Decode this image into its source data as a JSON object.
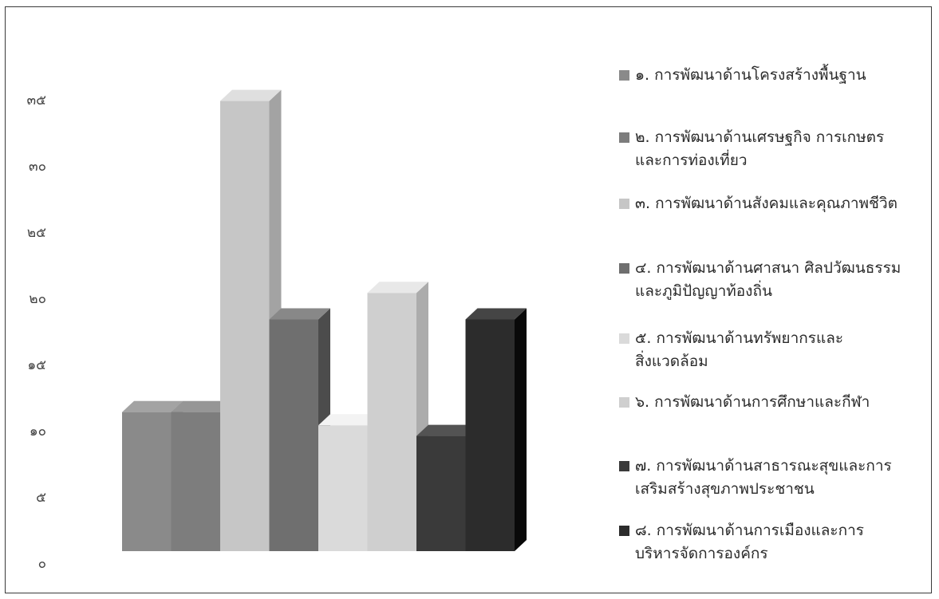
{
  "chart_data": {
    "type": "bar",
    "title": "",
    "xlabel": "",
    "ylabel": "",
    "ylim": [
      0,
      35
    ],
    "yticks": [
      "๐",
      "๕",
      "๑๐",
      "๑๕",
      "๒๐",
      "๒๕",
      "๓๐",
      "๓๕"
    ],
    "categories": [
      "๑. การพัฒนาด้านโครงสร้างพื้นฐาน",
      "๒. การพัฒนาด้านเศรษฐกิจ การเกษตร และการท่องเที่ยว",
      "๓. การพัฒนาด้านสังคมและคุณภาพชีวิต",
      "๔. การพัฒนาด้านศาสนา ศิลปวัฒนธรรม และภูมิปัญญาท้องถิ่น",
      "๕. การพัฒนาด้านทรัพยากรและ สิ่งแวดล้อม",
      "๖. การพัฒนาด้านการศึกษาและกีฬา",
      "๗. การพัฒนาด้านสาธารณะสุขและการ เสริมสร้างสุขภาพประชาชน",
      "๘. การพัฒนาด้านการเมืองและการ บริหารจัดการองค์กร"
    ],
    "values": [
      10.5,
      10.5,
      34.0,
      17.5,
      9.5,
      19.5,
      8.7,
      17.5
    ],
    "legend_position": "right",
    "grid": false,
    "colors": [
      "#8a8a8a",
      "#7d7d7d",
      "#c6c6c6",
      "#6f6f6f",
      "#dadada",
      "#cfcfcf",
      "#3a3a3a",
      "#2c2c2c"
    ]
  },
  "legend": {
    "items": [
      {
        "lines": [
          "๑. การพัฒนาด้านโครงสร้างพื้นฐาน"
        ]
      },
      {
        "lines": [
          "๒. การพัฒนาด้านเศรษฐกิจ การเกษตร",
          "และการท่องเที่ยว"
        ]
      },
      {
        "lines": [
          "๓. การพัฒนาด้านสังคมและคุณภาพชีวิต"
        ]
      },
      {
        "lines": [
          "๔. การพัฒนาด้านศาสนา ศิลปวัฒนธรรม",
          "และภูมิปัญญาท้องถิ่น"
        ]
      },
      {
        "lines": [
          "๕. การพัฒนาด้านทรัพยากรและ",
          "สิ่งแวดล้อม"
        ]
      },
      {
        "lines": [
          "๖. การพัฒนาด้านการศึกษาและกีฬา"
        ]
      },
      {
        "lines": [
          "๗. การพัฒนาด้านสาธารณะสุขและการ",
          "เสริมสร้างสุขภาพประชาชน"
        ]
      },
      {
        "lines": [
          "๘. การพัฒนาด้านการเมืองและการ",
          "บริหารจัดการองค์กร"
        ]
      }
    ]
  }
}
